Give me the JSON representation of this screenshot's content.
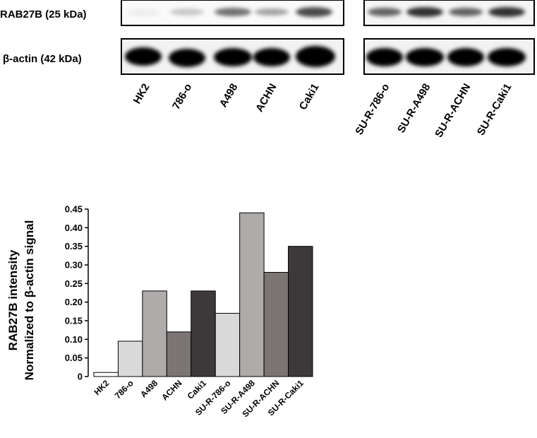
{
  "blot": {
    "row_labels": [
      "RAB27B (25 kDa)",
      "β-actin (42 kDa)"
    ],
    "lanes": [
      "HK2",
      "786-o",
      "A498",
      "ACHN",
      "Caki1",
      "SU-R-786-o",
      "SU-R-A498",
      "SU-R-ACHN",
      "SU-R-Caki1"
    ]
  },
  "chart_data": {
    "type": "bar",
    "ylabel": [
      "RAB27B intensity",
      "Normalized to β-actin signal"
    ],
    "categories": [
      "HK2",
      "786-o",
      "A498",
      "ACHN",
      "Caki1",
      "SU-R-786-o",
      "SU-R-A498",
      "SU-R-ACHN",
      "SU-R-Caki1"
    ],
    "values": [
      0.011,
      0.095,
      0.23,
      0.12,
      0.23,
      0.17,
      0.44,
      0.28,
      0.35
    ],
    "colors": [
      "#ffffff",
      "#d9d9d9",
      "#b0abab",
      "#7b7575",
      "#3d393b",
      "#d9d9d9",
      "#b0abab",
      "#7b7575",
      "#3d393b"
    ],
    "ylim": [
      0,
      0.45
    ],
    "yticks": [
      0,
      0.05,
      {
        "value": 0.1,
        "label": "0.10"
      },
      0.15,
      {
        "value": 0.2,
        "label": "0.20"
      },
      0.25,
      {
        "value": 0.3,
        "label": "0.30"
      },
      0.35,
      {
        "value": 0.4,
        "label": "0.40"
      },
      0.45
    ]
  }
}
